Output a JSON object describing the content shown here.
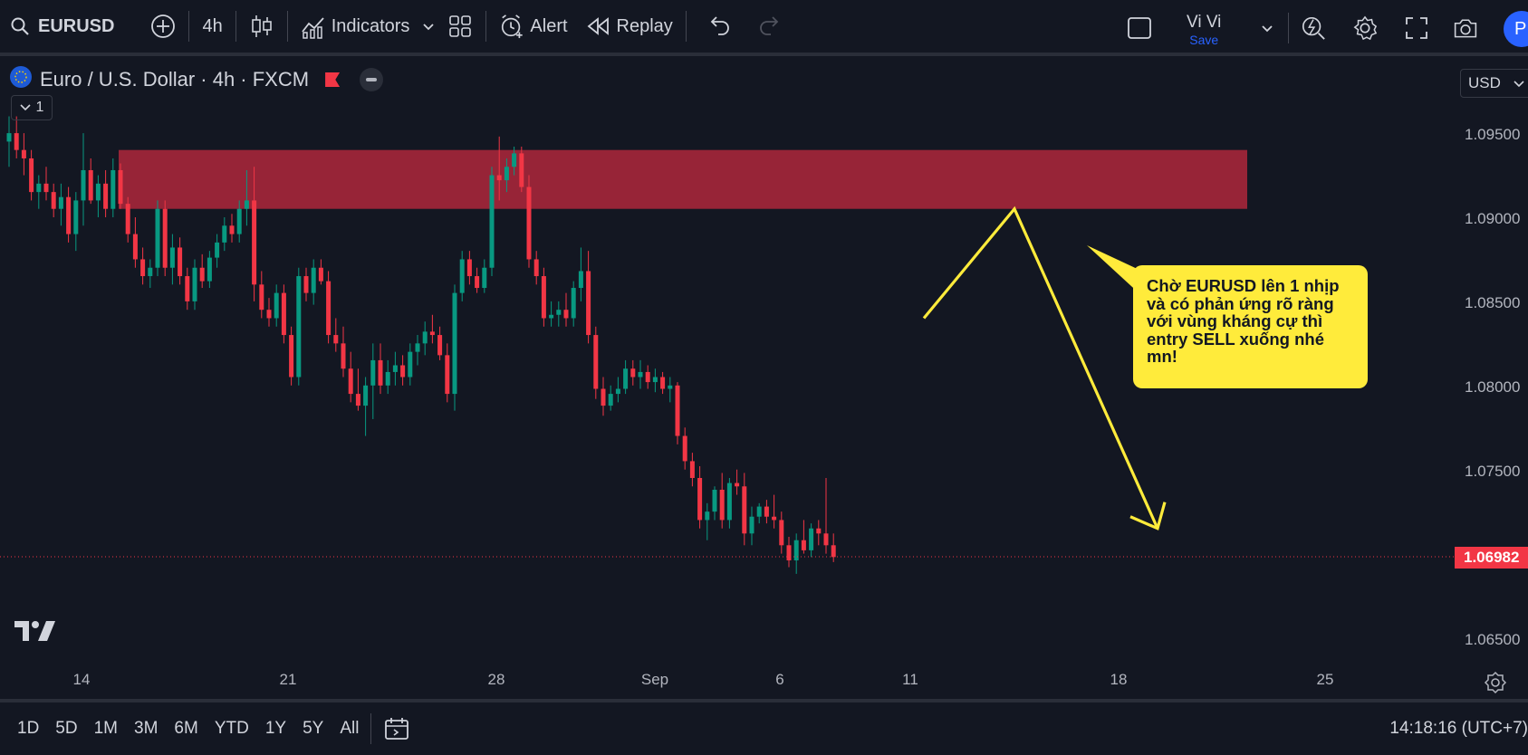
{
  "toolbar": {
    "symbol": "EURUSD",
    "interval": "4h",
    "indicators_label": "Indicators",
    "alert_label": "Alert",
    "replay_label": "Replay",
    "layout_name": "Vi Vi",
    "save_label": "Save",
    "publish_initial": "P"
  },
  "legend": {
    "title": "Euro / U.S. Dollar · 4h · FXCM",
    "indicators_count": "1"
  },
  "price_scale": {
    "currency": "USD",
    "ticks": [
      "1.09500",
      "1.09000",
      "1.08500",
      "1.08000",
      "1.07500",
      "1.06500"
    ],
    "last_price": "1.06982"
  },
  "time_scale": {
    "ticks": [
      "14",
      "21",
      "28",
      "Sep",
      "6",
      "11",
      "18",
      "25"
    ]
  },
  "annotation": {
    "text": "Chờ EURUSD lên 1 nhịp và có phản ứng rõ ràng với vùng kháng cự thì entry SELL xuống nhé mn!"
  },
  "bottombar": {
    "ranges": [
      "1D",
      "5D",
      "1M",
      "3M",
      "6M",
      "YTD",
      "1Y",
      "5Y",
      "All"
    ],
    "clock": "14:18:16 (UTC+7)"
  },
  "colors": {
    "background": "#131722",
    "up": "#089981",
    "down": "#f23645",
    "zone": "#a3263a",
    "callout": "#ffeb3b",
    "accent": "#2962ff"
  },
  "chart_data": {
    "type": "candlestick",
    "symbol": "EURUSD",
    "interval": "4h",
    "ylim": [
      1.063,
      1.0985
    ],
    "resistance_zone": [
      1.0905,
      1.094
    ],
    "last_price": 1.06982,
    "candles": [
      [
        1.0945,
        1.096,
        1.093,
        1.095
      ],
      [
        1.095,
        1.096,
        1.0935,
        1.094
      ],
      [
        1.094,
        1.095,
        1.0925,
        1.0935
      ],
      [
        1.0935,
        1.094,
        1.091,
        1.0915
      ],
      [
        1.0915,
        1.0925,
        1.0905,
        1.092
      ],
      [
        1.092,
        1.093,
        1.091,
        1.0915
      ],
      [
        1.0915,
        1.092,
        1.09,
        1.0905
      ],
      [
        1.0905,
        1.092,
        1.0895,
        1.0912
      ],
      [
        1.0912,
        1.0918,
        1.0885,
        1.089
      ],
      [
        1.089,
        1.0915,
        1.088,
        1.091
      ],
      [
        1.091,
        1.095,
        1.0895,
        1.0928
      ],
      [
        1.0928,
        1.0935,
        1.0908,
        1.091
      ],
      [
        1.091,
        1.0925,
        1.09,
        1.092
      ],
      [
        1.092,
        1.0928,
        1.09,
        1.0905
      ],
      [
        1.0905,
        1.0935,
        1.09,
        1.0928
      ],
      [
        1.0928,
        1.0932,
        1.0905,
        1.0908
      ],
      [
        1.0908,
        1.0912,
        1.0885,
        1.089
      ],
      [
        1.089,
        1.09,
        1.087,
        1.0875
      ],
      [
        1.0875,
        1.0882,
        1.086,
        1.0865
      ],
      [
        1.0865,
        1.0875,
        1.0858,
        1.087
      ],
      [
        1.087,
        1.091,
        1.0865,
        1.0905
      ],
      [
        1.0905,
        1.091,
        1.0865,
        1.087
      ],
      [
        1.087,
        1.089,
        1.086,
        1.0882
      ],
      [
        1.0882,
        1.0888,
        1.086,
        1.0865
      ],
      [
        1.0865,
        1.087,
        1.0845,
        1.085
      ],
      [
        1.085,
        1.0875,
        1.0845,
        1.087
      ],
      [
        1.087,
        1.0878,
        1.0858,
        1.0862
      ],
      [
        1.0862,
        1.088,
        1.0858,
        1.0876
      ],
      [
        1.0876,
        1.089,
        1.087,
        1.0885
      ],
      [
        1.0885,
        1.09,
        1.088,
        1.0895
      ],
      [
        1.0895,
        1.0902,
        1.0885,
        1.089
      ],
      [
        1.089,
        1.091,
        1.0885,
        1.0905
      ],
      [
        1.0905,
        1.0928,
        1.0895,
        1.091
      ],
      [
        1.091,
        1.093,
        1.085,
        1.086
      ],
      [
        1.086,
        1.0868,
        1.084,
        1.0845
      ],
      [
        1.0845,
        1.0852,
        1.0835,
        1.084
      ],
      [
        1.084,
        1.086,
        1.0835,
        1.0855
      ],
      [
        1.0855,
        1.086,
        1.0825,
        1.083
      ],
      [
        1.083,
        1.0835,
        1.08,
        1.0805
      ],
      [
        1.0805,
        1.087,
        1.08,
        1.0865
      ],
      [
        1.0865,
        1.087,
        1.085,
        1.0855
      ],
      [
        1.0855,
        1.0875,
        1.0848,
        1.087
      ],
      [
        1.087,
        1.0875,
        1.086,
        1.0862
      ],
      [
        1.0862,
        1.0868,
        1.0825,
        1.083
      ],
      [
        1.083,
        1.084,
        1.082,
        1.0825
      ],
      [
        1.0825,
        1.0835,
        1.0805,
        1.081
      ],
      [
        1.081,
        1.082,
        1.079,
        1.0795
      ],
      [
        1.0795,
        1.081,
        1.0785,
        1.0788
      ],
      [
        1.0788,
        1.0805,
        1.077,
        1.08
      ],
      [
        1.08,
        1.0825,
        1.078,
        1.0815
      ],
      [
        1.0815,
        1.0825,
        1.0795,
        1.08
      ],
      [
        1.08,
        1.0815,
        1.0795,
        1.0808
      ],
      [
        1.0808,
        1.082,
        1.08,
        1.0812
      ],
      [
        1.0812,
        1.0818,
        1.08,
        1.0805
      ],
      [
        1.0805,
        1.0825,
        1.08,
        1.082
      ],
      [
        1.082,
        1.083,
        1.0812,
        1.0825
      ],
      [
        1.0825,
        1.0838,
        1.0818,
        1.0832
      ],
      [
        1.0832,
        1.0842,
        1.0825,
        1.083
      ],
      [
        1.083,
        1.0835,
        1.0815,
        1.0818
      ],
      [
        1.0818,
        1.0825,
        1.079,
        1.0795
      ],
      [
        1.0795,
        1.086,
        1.0785,
        1.0855
      ],
      [
        1.0855,
        1.088,
        1.085,
        1.0875
      ],
      [
        1.0875,
        1.088,
        1.086,
        1.0865
      ],
      [
        1.0865,
        1.087,
        1.0855,
        1.0858
      ],
      [
        1.0858,
        1.0875,
        1.0855,
        1.087
      ],
      [
        1.087,
        1.093,
        1.0865,
        1.0925
      ],
      [
        1.0925,
        1.0948,
        1.091,
        1.0922
      ],
      [
        1.0922,
        1.0935,
        1.0915,
        1.093
      ],
      [
        1.093,
        1.0942,
        1.0925,
        1.0938
      ],
      [
        1.0938,
        1.0942,
        1.0915,
        1.0918
      ],
      [
        1.0918,
        1.0925,
        1.087,
        1.0875
      ],
      [
        1.0875,
        1.088,
        1.086,
        1.0865
      ],
      [
        1.0865,
        1.087,
        1.0835,
        1.084
      ],
      [
        1.084,
        1.085,
        1.0835,
        1.0842
      ],
      [
        1.0842,
        1.085,
        1.0835,
        1.0845
      ],
      [
        1.0845,
        1.0855,
        1.0835,
        1.084
      ],
      [
        1.084,
        1.0862,
        1.0835,
        1.0858
      ],
      [
        1.0858,
        1.0882,
        1.085,
        1.0868
      ],
      [
        1.0868,
        1.088,
        1.0825,
        1.083
      ],
      [
        1.083,
        1.0835,
        1.0792,
        1.0798
      ],
      [
        1.0798,
        1.0805,
        1.0782,
        1.0788
      ],
      [
        1.0788,
        1.08,
        1.0785,
        1.0795
      ],
      [
        1.0795,
        1.0805,
        1.079,
        1.0798
      ],
      [
        1.0798,
        1.0815,
        1.0795,
        1.081
      ],
      [
        1.081,
        1.0815,
        1.08,
        1.0805
      ],
      [
        1.0805,
        1.0815,
        1.0798,
        1.0808
      ],
      [
        1.0808,
        1.0812,
        1.0798,
        1.0802
      ],
      [
        1.0802,
        1.081,
        1.0796,
        1.0805
      ],
      [
        1.0805,
        1.0808,
        1.0795,
        1.0798
      ],
      [
        1.0798,
        1.0805,
        1.079,
        1.08
      ],
      [
        1.08,
        1.0802,
        1.0765,
        1.077
      ],
      [
        1.077,
        1.0775,
        1.075,
        1.0755
      ],
      [
        1.0755,
        1.076,
        1.074,
        1.0745
      ],
      [
        1.0745,
        1.0752,
        1.0715,
        1.072
      ],
      [
        1.072,
        1.073,
        1.0708,
        1.0725
      ],
      [
        1.0725,
        1.074,
        1.072,
        1.0738
      ],
      [
        1.0738,
        1.0748,
        1.0715,
        1.072
      ],
      [
        1.072,
        1.0745,
        1.0715,
        1.0742
      ],
      [
        1.0742,
        1.075,
        1.0735,
        1.074
      ],
      [
        1.074,
        1.0748,
        1.0705,
        1.0712
      ],
      [
        1.0712,
        1.0728,
        1.0705,
        1.0722
      ],
      [
        1.0722,
        1.073,
        1.0718,
        1.0728
      ],
      [
        1.0728,
        1.0732,
        1.0718,
        1.0722
      ],
      [
        1.0722,
        1.0735,
        1.0715,
        1.072
      ],
      [
        1.072,
        1.0725,
        1.07,
        1.0705
      ],
      [
        1.0705,
        1.071,
        1.0692,
        1.0696
      ],
      [
        1.0696,
        1.0712,
        1.0688,
        1.0708
      ],
      [
        1.0708,
        1.072,
        1.07,
        1.0702
      ],
      [
        1.0702,
        1.0718,
        1.0698,
        1.0715
      ],
      [
        1.0715,
        1.072,
        1.0705,
        1.0712
      ],
      [
        1.0712,
        1.0745,
        1.07,
        1.0705
      ],
      [
        1.0705,
        1.0712,
        1.0695,
        1.0698
      ]
    ],
    "projection_path": [
      [
        1.084,
        "up"
      ],
      [
        1.0905,
        "peak"
      ],
      [
        1.0715,
        "down"
      ]
    ]
  }
}
